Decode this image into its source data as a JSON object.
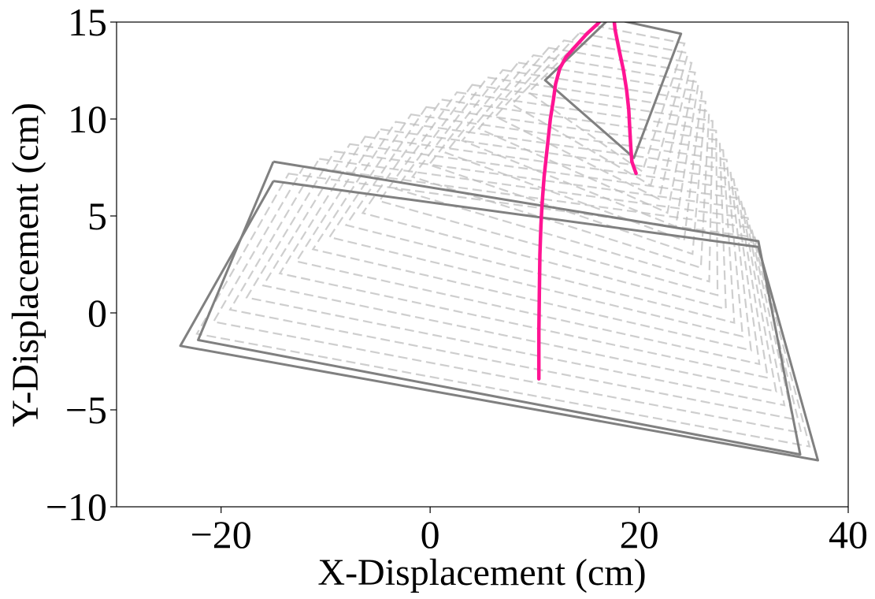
{
  "chart_data": {
    "type": "line",
    "title": "",
    "xlabel": "X-Displacement (cm)",
    "ylabel": "Y-Displacement (cm)",
    "xlim": [
      -30,
      40
    ],
    "ylim": [
      -10,
      15
    ],
    "xticks": [
      -20,
      0,
      20,
      40
    ],
    "xtick_labels": [
      "−20",
      "0",
      "20",
      "40"
    ],
    "yticks": [
      -10,
      -5,
      0,
      5,
      10,
      15
    ],
    "ytick_labels": [
      "−10",
      "−5",
      "0",
      "5",
      "10",
      "15"
    ],
    "grid": false,
    "legend": "none",
    "colors": {
      "trajectory": "#ff1493",
      "outline": "#808080",
      "ghost": "#bdbdbd"
    },
    "trajectories": [
      {
        "x": [
          10.4,
          10.4,
          10.45,
          10.5,
          10.6,
          10.7,
          10.9,
          11.2,
          11.5,
          11.8,
          12.0,
          12.4,
          13.0,
          14.0,
          15.0,
          16.0,
          16.5,
          17.2
        ],
        "y": [
          -3.4,
          -1.0,
          1.0,
          3.0,
          4.5,
          5.5,
          7.0,
          8.5,
          10.0,
          11.0,
          11.8,
          12.6,
          13.2,
          13.8,
          14.4,
          14.9,
          15.2,
          15.6
        ]
      },
      {
        "x": [
          19.7,
          19.5,
          19.3,
          19.2,
          19.1,
          19.0,
          18.8,
          18.5,
          18.1,
          17.7,
          17.5
        ],
        "y": [
          7.2,
          7.5,
          7.8,
          8.5,
          9.5,
          10.5,
          11.5,
          12.5,
          13.5,
          14.6,
          15.6
        ]
      }
    ],
    "outlines": [
      {
        "name": "",
        "x": [
          -15.0,
          31.4,
          37.1,
          -23.9,
          -15.0
        ],
        "y": [
          6.8,
          3.4,
          -7.6,
          -1.7,
          6.8
        ]
      },
      {
        "name": "",
        "x": [
          -15.0,
          31.4,
          35.4,
          -22.2,
          -15.0
        ],
        "y": [
          7.8,
          3.7,
          -7.3,
          -1.4,
          7.8
        ]
      },
      {
        "name": "",
        "x": [
          17.2,
          24.0,
          19.5,
          11.0,
          17.2
        ],
        "y": [
          15.2,
          14.4,
          8.0,
          12.0,
          15.2
        ]
      }
    ],
    "ghosts": {
      "count": 22,
      "from": {
        "x": [
          -15.0,
          31.4,
          37.1,
          -23.9
        ],
        "y": [
          6.8,
          3.4,
          -7.6,
          -1.7
        ]
      },
      "to": {
        "x": [
          17.2,
          24.0,
          19.5,
          11.0
        ],
        "y": [
          15.2,
          14.4,
          8.0,
          12.0
        ]
      }
    }
  }
}
